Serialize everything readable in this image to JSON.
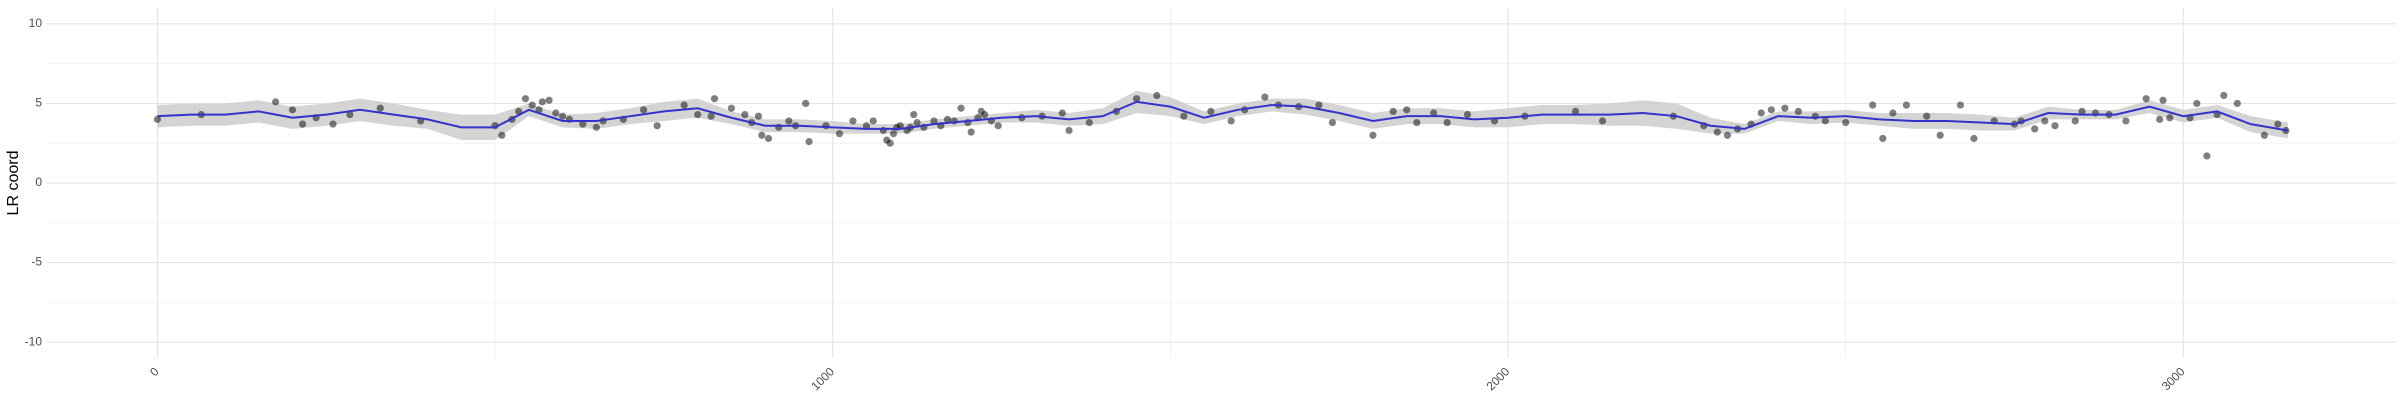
{
  "chart_data": {
    "type": "scatter",
    "y_label": "LR coord",
    "xlim": [
      -165,
      3315
    ],
    "ylim": [
      -11,
      11
    ],
    "xticks": [
      0,
      1000,
      2000,
      3000
    ],
    "yticks": [
      -10,
      -5,
      0,
      5,
      10
    ],
    "minor_xticks": [
      500,
      1500,
      2500
    ],
    "minor_yticks": [
      -7.5,
      -2.5,
      2.5,
      7.5
    ],
    "grid": true,
    "points": {
      "color": "#000000",
      "x": [
        0,
        65,
        175,
        200,
        215,
        235,
        260,
        285,
        330,
        390,
        500,
        510,
        525,
        535,
        545,
        555,
        565,
        570,
        580,
        590,
        600,
        610,
        630,
        650,
        660,
        690,
        720,
        740,
        780,
        800,
        820,
        825,
        850,
        870,
        880,
        890,
        895,
        905,
        920,
        935,
        945,
        960,
        965,
        990,
        1010,
        1030,
        1050,
        1060,
        1075,
        1080,
        1085,
        1090,
        1095,
        1100,
        1110,
        1115,
        1120,
        1125,
        1135,
        1150,
        1160,
        1170,
        1180,
        1190,
        1200,
        1205,
        1215,
        1220,
        1225,
        1235,
        1245,
        1280,
        1310,
        1340,
        1350,
        1380,
        1420,
        1450,
        1480,
        1520,
        1560,
        1590,
        1610,
        1640,
        1660,
        1690,
        1720,
        1740,
        1800,
        1830,
        1850,
        1865,
        1890,
        1910,
        1940,
        1980,
        2025,
        2100,
        2140,
        2245,
        2290,
        2310,
        2325,
        2340,
        2360,
        2375,
        2390,
        2410,
        2430,
        2455,
        2470,
        2500,
        2540,
        2555,
        2570,
        2590,
        2620,
        2640,
        2670,
        2690,
        2720,
        2750,
        2760,
        2780,
        2795,
        2810,
        2840,
        2850,
        2870,
        2890,
        2915,
        2945,
        2965,
        2970,
        2980,
        3010,
        3020,
        3035,
        3050,
        3060,
        3080,
        3120,
        3140,
        3152
      ],
      "y": [
        4.0,
        4.3,
        5.1,
        4.6,
        3.7,
        4.1,
        3.7,
        4.3,
        4.7,
        3.9,
        3.6,
        3.0,
        4.0,
        4.5,
        5.3,
        4.9,
        4.6,
        5.1,
        5.2,
        4.4,
        4.2,
        4.0,
        3.7,
        3.5,
        3.9,
        4.0,
        4.6,
        3.6,
        4.9,
        4.3,
        4.2,
        5.3,
        4.7,
        4.3,
        3.8,
        4.2,
        3.0,
        2.8,
        3.5,
        3.9,
        3.6,
        5.0,
        2.6,
        3.6,
        3.1,
        3.9,
        3.6,
        3.9,
        3.3,
        2.7,
        2.5,
        3.1,
        3.5,
        3.6,
        3.3,
        3.5,
        4.3,
        3.8,
        3.5,
        3.9,
        3.6,
        4.0,
        3.9,
        4.7,
        3.8,
        3.2,
        4.1,
        4.5,
        4.3,
        3.9,
        3.6,
        4.1,
        4.2,
        4.4,
        3.3,
        3.8,
        4.5,
        5.3,
        5.5,
        4.2,
        4.5,
        3.9,
        4.6,
        5.4,
        4.9,
        4.8,
        4.9,
        3.8,
        3.0,
        4.5,
        4.6,
        3.8,
        4.4,
        3.8,
        4.3,
        3.9,
        4.2,
        4.5,
        3.9,
        4.2,
        3.6,
        3.2,
        3.0,
        3.4,
        3.7,
        4.4,
        4.6,
        4.7,
        4.5,
        4.2,
        3.9,
        3.8,
        4.9,
        2.8,
        4.4,
        4.9,
        4.2,
        3.0,
        4.9,
        2.8,
        3.9,
        3.7,
        3.9,
        3.4,
        3.9,
        3.6,
        3.9,
        4.5,
        4.4,
        4.3,
        3.9,
        5.3,
        4.0,
        5.2,
        4.1,
        4.1,
        5.0,
        1.7,
        4.3,
        5.5,
        5.0,
        3.0,
        3.7,
        3.3
      ]
    },
    "smooth": {
      "color": "#3333cc",
      "ribbon_color": "#cccccc",
      "x": [
        0,
        50,
        100,
        150,
        200,
        250,
        300,
        350,
        400,
        450,
        500,
        550,
        600,
        650,
        700,
        750,
        800,
        850,
        900,
        950,
        1000,
        1050,
        1100,
        1150,
        1200,
        1250,
        1300,
        1350,
        1400,
        1450,
        1500,
        1550,
        1600,
        1650,
        1700,
        1750,
        1800,
        1850,
        1900,
        1950,
        2000,
        2050,
        2100,
        2150,
        2200,
        2250,
        2300,
        2350,
        2400,
        2450,
        2500,
        2550,
        2600,
        2650,
        2700,
        2750,
        2800,
        2850,
        2900,
        2950,
        3000,
        3050,
        3100,
        3155
      ],
      "y": [
        4.2,
        4.3,
        4.3,
        4.5,
        4.1,
        4.3,
        4.6,
        4.3,
        4.0,
        3.5,
        3.5,
        4.6,
        3.9,
        3.9,
        4.2,
        4.5,
        4.7,
        4.1,
        3.6,
        3.6,
        3.5,
        3.4,
        3.4,
        3.7,
        3.9,
        4.1,
        4.2,
        4.0,
        4.2,
        5.1,
        4.8,
        4.1,
        4.6,
        4.9,
        4.8,
        4.4,
        3.9,
        4.2,
        4.2,
        4.0,
        4.1,
        4.3,
        4.3,
        4.3,
        4.4,
        4.2,
        3.6,
        3.4,
        4.2,
        4.1,
        4.2,
        4.0,
        3.9,
        3.9,
        3.8,
        3.7,
        4.4,
        4.3,
        4.3,
        4.8,
        4.2,
        4.5,
        3.7,
        3.3
      ],
      "lower": [
        3.5,
        3.6,
        3.6,
        3.8,
        3.4,
        3.6,
        3.9,
        3.6,
        3.4,
        2.7,
        2.7,
        4.2,
        3.5,
        3.4,
        3.7,
        3.9,
        4.1,
        3.7,
        3.2,
        3.2,
        3.1,
        3.1,
        3.1,
        3.4,
        3.6,
        3.8,
        3.8,
        3.6,
        3.7,
        4.4,
        4.2,
        3.7,
        4.2,
        4.5,
        4.3,
        3.9,
        3.4,
        3.7,
        3.7,
        3.5,
        3.5,
        3.7,
        3.7,
        3.6,
        3.6,
        3.4,
        3.1,
        3.1,
        3.9,
        3.7,
        3.8,
        3.6,
        3.4,
        3.4,
        3.3,
        3.3,
        4.0,
        4.0,
        4.0,
        4.4,
        3.8,
        4.1,
        3.2,
        2.8
      ],
      "upper": [
        4.9,
        5.0,
        5.0,
        5.2,
        4.8,
        5.0,
        5.3,
        5.0,
        4.6,
        4.3,
        4.3,
        5.0,
        4.3,
        4.4,
        4.7,
        5.1,
        5.3,
        4.5,
        4.0,
        4.0,
        3.9,
        3.7,
        3.7,
        4.0,
        4.2,
        4.4,
        4.6,
        4.4,
        4.7,
        5.8,
        5.4,
        4.5,
        5.0,
        5.3,
        5.3,
        4.9,
        4.4,
        4.7,
        4.7,
        4.5,
        4.7,
        4.9,
        4.9,
        5.0,
        5.2,
        5.0,
        4.1,
        3.7,
        4.5,
        4.5,
        4.6,
        4.4,
        4.4,
        4.4,
        4.3,
        4.1,
        4.8,
        4.6,
        4.6,
        5.2,
        4.6,
        4.9,
        4.2,
        3.8
      ]
    }
  }
}
